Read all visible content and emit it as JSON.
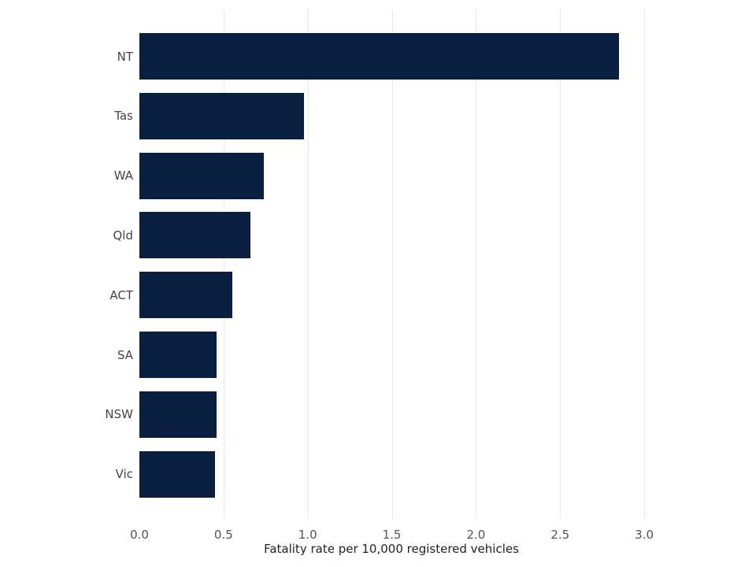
{
  "chart_data": {
    "type": "bar",
    "orientation": "horizontal",
    "title": "",
    "xlabel": "Fatality rate per 10,000 registered vehicles",
    "ylabel": "",
    "categories": [
      "NT",
      "Tas",
      "WA",
      "Qld",
      "ACT",
      "SA",
      "NSW",
      "Vic"
    ],
    "values": [
      2.85,
      0.98,
      0.74,
      0.66,
      0.55,
      0.46,
      0.46,
      0.45
    ],
    "xlim": [
      0,
      3.0
    ],
    "x_ticks": [
      "0.0",
      "0.5",
      "1.0",
      "1.5",
      "2.0",
      "2.5",
      "3.0"
    ],
    "grid": "vertical dotted",
    "legend": "none",
    "bar_color": "#0a1f40"
  }
}
